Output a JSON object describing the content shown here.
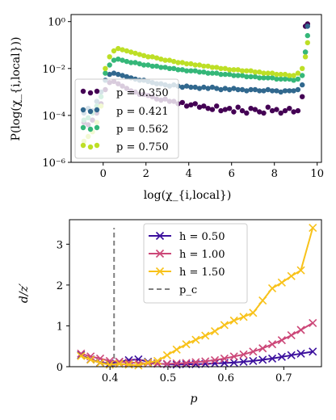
{
  "chart_data": [
    {
      "type": "scatter",
      "title": "",
      "xlabel": "log(χ_{i,local})",
      "ylabel": "P(log(χ_{i,local}))",
      "xlim": [
        -1.5,
        10.2
      ],
      "ylim_log10": [
        -6,
        0.3
      ],
      "y_scale": "log",
      "xticks": [
        "0",
        "2",
        "4",
        "6",
        "8",
        "10"
      ],
      "yticks": [
        "10⁰",
        "10⁻²",
        "10⁻⁴",
        "10⁻⁶"
      ],
      "legend_position": "lower-left",
      "series": [
        {
          "name": "p = 0.350",
          "color": "#440154",
          "x": [
            -0.9,
            -0.7,
            -0.5,
            -0.3,
            -0.1,
            0.1,
            0.3,
            0.5,
            0.7,
            0.9,
            1.1,
            1.3,
            1.5,
            1.7,
            1.9,
            2.1,
            2.3,
            2.5,
            2.7,
            2.9,
            3.1,
            3.3,
            3.5,
            3.7,
            3.9,
            4.1,
            4.3,
            4.5,
            4.7,
            4.9,
            5.1,
            5.3,
            5.5,
            5.7,
            5.9,
            6.1,
            6.3,
            6.5,
            6.7,
            6.9,
            7.1,
            7.3,
            7.5,
            7.7,
            7.9,
            8.1,
            8.3,
            8.5,
            8.7,
            8.9,
            9.1,
            9.3,
            9.45,
            9.55
          ],
          "log10y": [
            -4.3,
            -4.4,
            -4.2,
            -3.9,
            -3.5,
            -2.9,
            -2.6,
            -2.55,
            -2.65,
            -2.75,
            -2.85,
            -2.95,
            -3.0,
            -3.1,
            -3.1,
            -3.15,
            -3.2,
            -3.3,
            -3.35,
            -3.3,
            -3.4,
            -3.4,
            -3.5,
            -3.45,
            -3.6,
            -3.55,
            -3.5,
            -3.65,
            -3.6,
            -3.7,
            -3.75,
            -3.6,
            -3.8,
            -3.75,
            -3.7,
            -3.85,
            -3.65,
            -3.8,
            -3.9,
            -3.7,
            -3.75,
            -3.85,
            -3.9,
            -3.65,
            -3.8,
            -3.75,
            -3.9,
            -3.8,
            -3.7,
            -3.85,
            -3.8,
            -3.2,
            -0.2,
            -0.1
          ]
        },
        {
          "name": "p = 0.421",
          "color": "#31688e",
          "x": [
            -0.9,
            -0.7,
            -0.5,
            -0.3,
            -0.1,
            0.1,
            0.3,
            0.5,
            0.7,
            0.9,
            1.1,
            1.3,
            1.5,
            1.7,
            1.9,
            2.1,
            2.3,
            2.5,
            2.7,
            2.9,
            3.1,
            3.3,
            3.5,
            3.7,
            3.9,
            4.1,
            4.3,
            4.5,
            4.7,
            4.9,
            5.1,
            5.3,
            5.5,
            5.7,
            5.9,
            6.1,
            6.3,
            6.5,
            6.7,
            6.9,
            7.1,
            7.3,
            7.5,
            7.7,
            7.9,
            8.1,
            8.3,
            8.5,
            8.7,
            8.9,
            9.1,
            9.3,
            9.45,
            9.55
          ],
          "log10y": [
            -3.9,
            -3.7,
            -3.8,
            -3.4,
            -3.0,
            -2.5,
            -2.25,
            -2.2,
            -2.25,
            -2.3,
            -2.35,
            -2.4,
            -2.45,
            -2.5,
            -2.5,
            -2.55,
            -2.6,
            -2.65,
            -2.65,
            -2.7,
            -2.75,
            -2.7,
            -2.75,
            -2.8,
            -2.75,
            -2.8,
            -2.8,
            -2.85,
            -2.8,
            -2.85,
            -2.8,
            -2.85,
            -2.9,
            -2.85,
            -2.9,
            -2.85,
            -2.9,
            -2.9,
            -2.95,
            -2.9,
            -2.9,
            -2.95,
            -2.95,
            -2.9,
            -2.95,
            -2.95,
            -3.0,
            -2.95,
            -2.95,
            -2.95,
            -2.9,
            -2.7,
            -1.3,
            -0.2
          ]
        },
        {
          "name": "p = 0.562",
          "color": "#35b779",
          "x": [
            -0.9,
            -0.7,
            -0.5,
            -0.3,
            -0.1,
            0.1,
            0.3,
            0.5,
            0.7,
            0.9,
            1.1,
            1.3,
            1.5,
            1.7,
            1.9,
            2.1,
            2.3,
            2.5,
            2.7,
            2.9,
            3.1,
            3.3,
            3.5,
            3.7,
            3.9,
            4.1,
            4.3,
            4.5,
            4.7,
            4.9,
            5.1,
            5.3,
            5.5,
            5.7,
            5.9,
            6.1,
            6.3,
            6.5,
            6.7,
            6.9,
            7.1,
            7.3,
            7.5,
            7.7,
            7.9,
            8.1,
            8.3,
            8.5,
            8.7,
            8.9,
            9.1,
            9.3,
            9.45,
            9.55
          ],
          "log10y": [
            -4.2,
            -4.1,
            -3.9,
            -3.6,
            -3.2,
            -2.2,
            -1.85,
            -1.65,
            -1.6,
            -1.65,
            -1.7,
            -1.75,
            -1.75,
            -1.8,
            -1.85,
            -1.85,
            -1.9,
            -1.9,
            -1.95,
            -1.95,
            -2.0,
            -2.0,
            -2.05,
            -2.05,
            -2.1,
            -2.1,
            -2.1,
            -2.15,
            -2.15,
            -2.2,
            -2.2,
            -2.2,
            -2.25,
            -2.25,
            -2.25,
            -2.3,
            -2.3,
            -2.3,
            -2.35,
            -2.35,
            -2.35,
            -2.4,
            -2.4,
            -2.4,
            -2.4,
            -2.45,
            -2.45,
            -2.45,
            -2.45,
            -2.5,
            -2.45,
            -2.3,
            -1.3,
            -0.6
          ]
        },
        {
          "name": "p = 0.750",
          "color": "#bddf26",
          "x": [
            -0.9,
            -0.7,
            -0.5,
            -0.3,
            -0.1,
            0.1,
            0.3,
            0.5,
            0.7,
            0.9,
            1.1,
            1.3,
            1.5,
            1.7,
            1.9,
            2.1,
            2.3,
            2.5,
            2.7,
            2.9,
            3.1,
            3.3,
            3.5,
            3.7,
            3.9,
            4.1,
            4.3,
            4.5,
            4.7,
            4.9,
            5.1,
            5.3,
            5.5,
            5.7,
            5.9,
            6.1,
            6.3,
            6.5,
            6.7,
            6.9,
            7.1,
            7.3,
            7.5,
            7.7,
            7.9,
            8.1,
            8.3,
            8.5,
            8.7,
            8.9,
            9.1,
            9.3,
            9.45,
            9.55
          ],
          "log10y": [
            -5.1,
            -4.9,
            -4.7,
            -4.3,
            -3.6,
            -2.0,
            -1.5,
            -1.25,
            -1.15,
            -1.2,
            -1.25,
            -1.3,
            -1.35,
            -1.4,
            -1.45,
            -1.5,
            -1.5,
            -1.55,
            -1.6,
            -1.65,
            -1.65,
            -1.7,
            -1.75,
            -1.75,
            -1.8,
            -1.8,
            -1.85,
            -1.85,
            -1.9,
            -1.9,
            -1.95,
            -1.95,
            -2.0,
            -2.0,
            -2.05,
            -2.05,
            -2.05,
            -2.1,
            -2.1,
            -2.1,
            -2.15,
            -2.15,
            -2.2,
            -2.2,
            -2.2,
            -2.25,
            -2.25,
            -2.25,
            -2.3,
            -2.3,
            -2.2,
            -2.0,
            -1.5,
            -0.9
          ]
        }
      ]
    },
    {
      "type": "line",
      "title": "",
      "xlabel": "p",
      "ylabel": "d/z′",
      "xlim": [
        0.33,
        0.765
      ],
      "ylim": [
        0,
        3.6
      ],
      "xticks": [
        "0.4",
        "0.5",
        "0.6",
        "0.7"
      ],
      "yticks": [
        "0",
        "1",
        "2",
        "3"
      ],
      "legend_position": "top-center",
      "x": [
        0.35,
        0.3665,
        0.383,
        0.3995,
        0.416,
        0.4325,
        0.449,
        0.4655,
        0.482,
        0.4985,
        0.515,
        0.5315,
        0.548,
        0.5645,
        0.581,
        0.5975,
        0.614,
        0.6305,
        0.647,
        0.6635,
        0.68,
        0.6965,
        0.713,
        0.7295,
        0.75
      ],
      "series": [
        {
          "name": "h = 0.50",
          "color": "#3b0f9d",
          "values": [
            0.28,
            0.18,
            0.1,
            0.08,
            0.12,
            0.16,
            0.18,
            0.12,
            0.08,
            0.06,
            0.05,
            0.06,
            0.06,
            0.07,
            0.08,
            0.09,
            0.1,
            0.12,
            0.14,
            0.17,
            0.2,
            0.24,
            0.28,
            0.32,
            0.37
          ]
        },
        {
          "name": "h = 1.00",
          "color": "#cc4778",
          "values": [
            0.32,
            0.25,
            0.2,
            0.14,
            0.12,
            0.1,
            0.09,
            0.08,
            0.07,
            0.07,
            0.08,
            0.09,
            0.11,
            0.13,
            0.16,
            0.2,
            0.25,
            0.3,
            0.37,
            0.45,
            0.55,
            0.65,
            0.77,
            0.9,
            1.07
          ]
        },
        {
          "name": "h = 1.50",
          "color": "#f8c21a",
          "values": [
            0.26,
            0.17,
            0.09,
            0.05,
            0.07,
            0.05,
            0.03,
            0.1,
            0.14,
            0.28,
            0.42,
            0.55,
            0.66,
            0.76,
            0.87,
            1.02,
            1.13,
            1.22,
            1.32,
            1.62,
            1.92,
            2.06,
            2.22,
            2.36,
            3.4
          ]
        }
      ],
      "vline": {
        "name": "p_c",
        "x": 0.407,
        "y_top": 3.4,
        "color": "#808080"
      }
    }
  ]
}
